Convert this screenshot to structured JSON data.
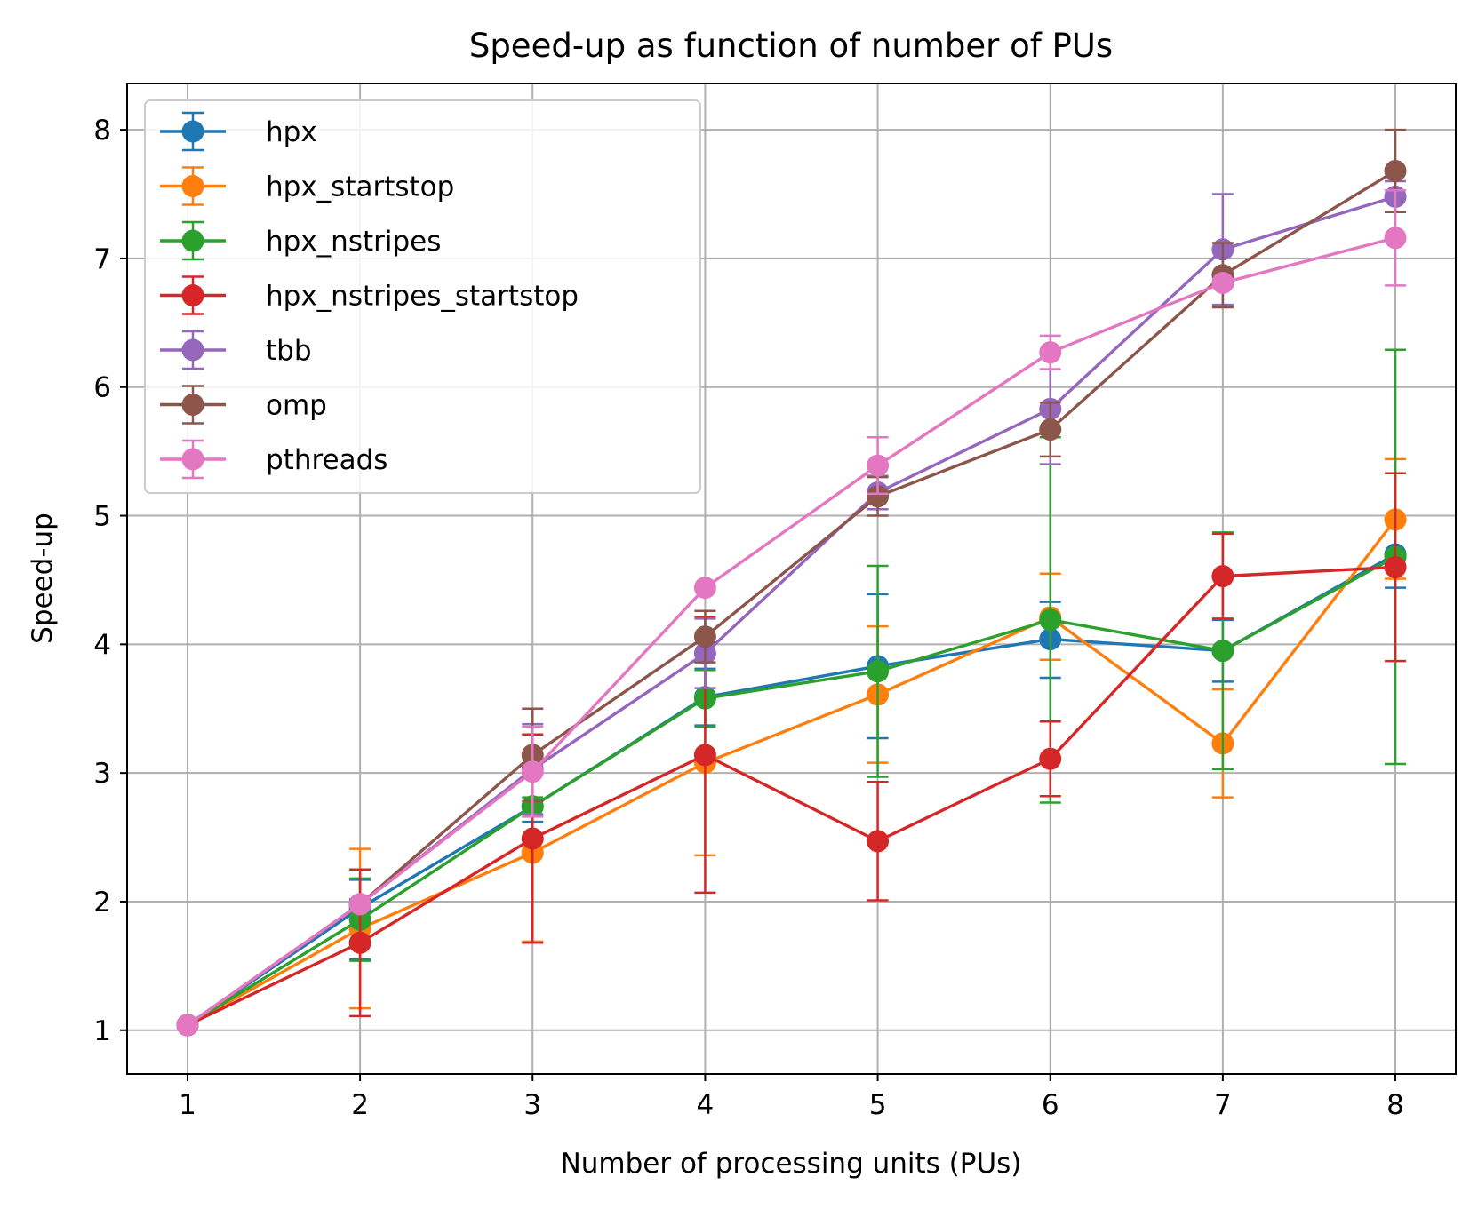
{
  "chart_data": {
    "type": "line",
    "title": "Speed-up as function of number of PUs",
    "xlabel": "Number of processing units (PUs)",
    "ylabel": "Speed-up",
    "x": [
      1,
      2,
      3,
      4,
      5,
      6,
      7,
      8
    ],
    "xticks": [
      "1",
      "2",
      "3",
      "4",
      "5",
      "6",
      "7",
      "8"
    ],
    "yticks": [
      "1",
      "2",
      "3",
      "4",
      "5",
      "6",
      "7",
      "8"
    ],
    "xlim": [
      0.65,
      8.35
    ],
    "ylim": [
      0.66,
      8.36
    ],
    "grid": true,
    "legend_position": "top-left",
    "error_bars": true,
    "series": [
      {
        "name": "hpx",
        "color": "#1f77b4",
        "values": [
          1.04,
          1.95,
          2.74,
          3.59,
          3.83,
          4.04,
          3.95,
          4.7
        ],
        "err_low": [
          1.04,
          1.55,
          2.62,
          3.37,
          3.27,
          3.74,
          3.71,
          4.44
        ],
        "err_high": [
          1.04,
          2.17,
          3.01,
          3.81,
          4.39,
          4.33,
          4.19,
          4.96
        ]
      },
      {
        "name": "hpx_startstop",
        "color": "#ff7f0e",
        "values": [
          1.04,
          1.79,
          2.38,
          3.08,
          3.61,
          4.21,
          3.23,
          4.97
        ],
        "err_low": [
          1.04,
          1.17,
          1.69,
          2.36,
          3.08,
          3.88,
          2.81,
          4.51
        ],
        "err_high": [
          1.04,
          2.41,
          3.07,
          3.8,
          4.14,
          4.55,
          3.65,
          5.44
        ]
      },
      {
        "name": "hpx_nstripes",
        "color": "#2ca02c",
        "values": [
          1.04,
          1.86,
          2.74,
          3.58,
          3.79,
          4.19,
          3.95,
          4.68
        ],
        "err_low": [
          1.04,
          1.54,
          2.67,
          3.36,
          2.97,
          2.77,
          3.03,
          3.07
        ],
        "err_high": [
          1.04,
          2.18,
          2.81,
          3.8,
          4.61,
          5.61,
          4.87,
          6.29
        ]
      },
      {
        "name": "hpx_nstripes_startstop",
        "color": "#d62728",
        "values": [
          1.04,
          1.68,
          2.49,
          3.14,
          2.47,
          3.11,
          4.53,
          4.6
        ],
        "err_low": [
          1.04,
          1.11,
          1.68,
          2.07,
          2.01,
          2.82,
          4.2,
          3.87
        ],
        "err_high": [
          1.04,
          2.25,
          3.3,
          4.21,
          2.93,
          3.4,
          4.86,
          5.33
        ]
      },
      {
        "name": "tbb",
        "color": "#9467bd",
        "values": [
          1.04,
          1.98,
          3.03,
          3.93,
          5.18,
          5.83,
          7.07,
          7.48
        ],
        "err_low": [
          1.04,
          1.94,
          2.68,
          3.66,
          5.05,
          5.4,
          6.64,
          7.36
        ],
        "err_high": [
          1.04,
          2.02,
          3.38,
          4.2,
          5.31,
          6.26,
          7.5,
          7.6
        ]
      },
      {
        "name": "omp",
        "color": "#8c564b",
        "values": [
          1.04,
          1.98,
          3.14,
          4.06,
          5.15,
          5.67,
          6.87,
          7.68
        ],
        "err_low": [
          1.04,
          1.95,
          2.78,
          3.86,
          5.0,
          5.46,
          6.62,
          7.36
        ],
        "err_high": [
          1.04,
          2.01,
          3.5,
          4.26,
          5.3,
          5.88,
          7.12,
          8.0
        ]
      },
      {
        "name": "pthreads",
        "color": "#e377c2",
        "values": [
          1.04,
          1.98,
          3.01,
          4.44,
          5.39,
          6.27,
          6.81,
          7.16
        ],
        "err_low": [
          1.04,
          1.96,
          2.66,
          4.44,
          5.17,
          6.14,
          6.78,
          6.79
        ],
        "err_high": [
          1.04,
          2.0,
          3.36,
          4.44,
          5.61,
          6.4,
          6.84,
          7.53
        ]
      }
    ]
  }
}
